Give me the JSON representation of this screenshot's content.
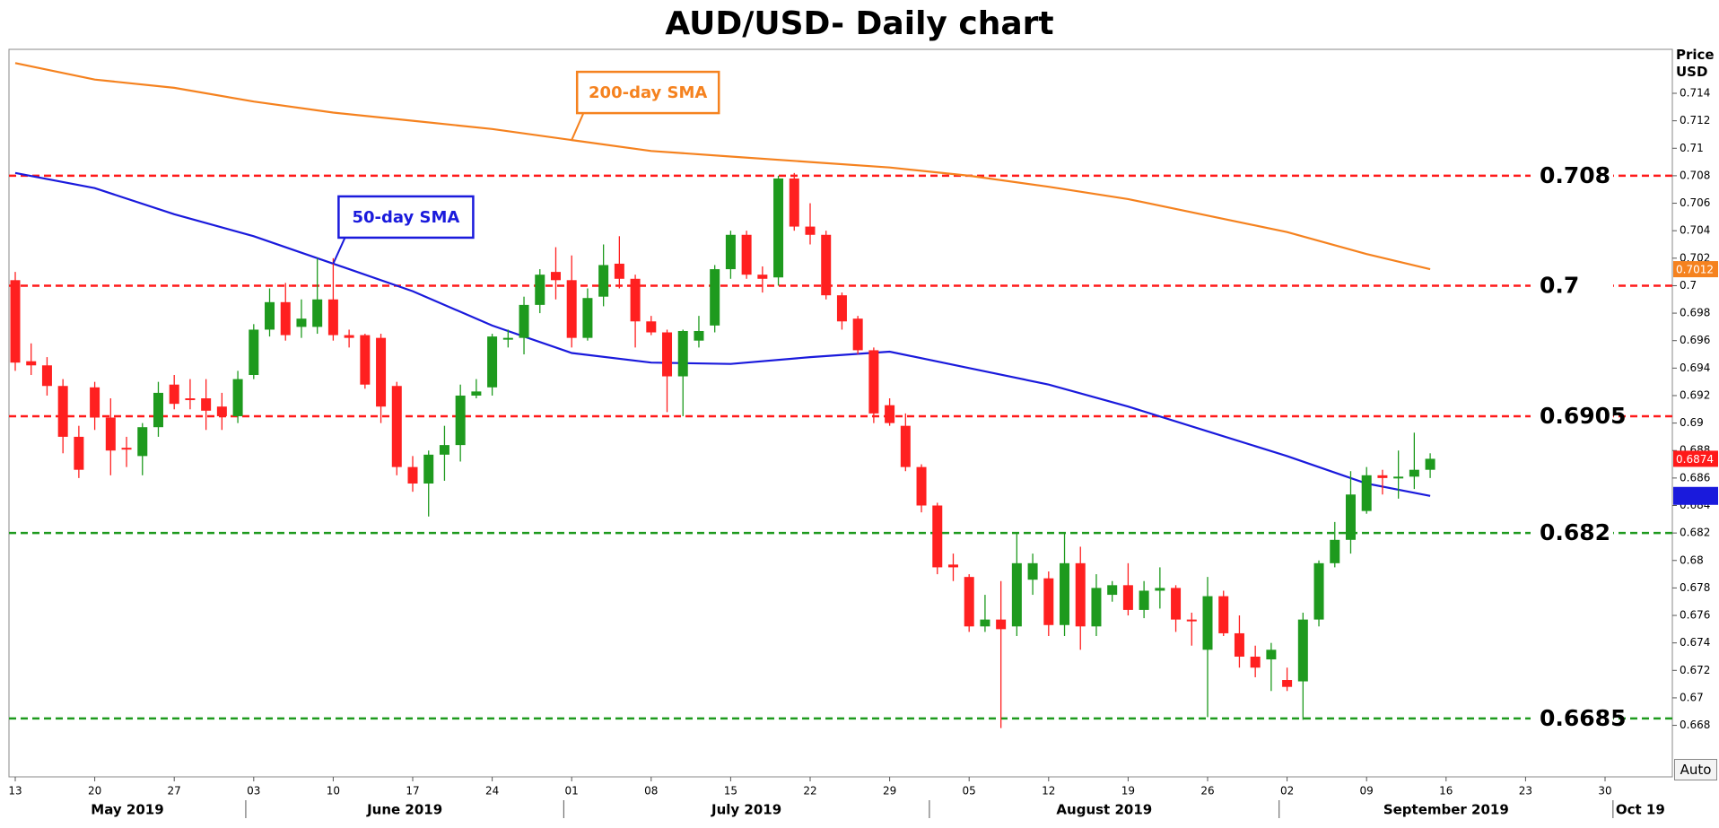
{
  "chart_data": {
    "type": "candlestick",
    "title": "AUD/USD- Daily chart",
    "ylabel": "Price USD",
    "auto_button": "Auto",
    "ylim": [
      0.66425,
      0.7172
    ],
    "yticks": [
      0.668,
      0.67,
      0.672,
      0.674,
      0.676,
      0.678,
      0.68,
      0.682,
      0.684,
      0.686,
      0.688,
      0.69,
      0.692,
      0.694,
      0.696,
      0.698,
      0.7,
      0.702,
      0.704,
      0.706,
      0.708,
      0.71,
      0.712,
      0.714
    ],
    "xticks": [
      {
        "value": "2019-05-13",
        "label": "13"
      },
      {
        "value": "2019-05-20",
        "label": "20"
      },
      {
        "value": "2019-05-27",
        "label": "27"
      },
      {
        "value": "2019-06-03",
        "label": "03"
      },
      {
        "value": "2019-06-10",
        "label": "10"
      },
      {
        "value": "2019-06-17",
        "label": "17"
      },
      {
        "value": "2019-06-24",
        "label": "24"
      },
      {
        "value": "2019-07-01",
        "label": "01"
      },
      {
        "value": "2019-07-08",
        "label": "08"
      },
      {
        "value": "2019-07-15",
        "label": "15"
      },
      {
        "value": "2019-07-22",
        "label": "22"
      },
      {
        "value": "2019-07-29",
        "label": "29"
      },
      {
        "value": "2019-08-05",
        "label": "05"
      },
      {
        "value": "2019-08-12",
        "label": "12"
      },
      {
        "value": "2019-08-19",
        "label": "19"
      },
      {
        "value": "2019-08-26",
        "label": "26"
      },
      {
        "value": "2019-09-02",
        "label": "02"
      },
      {
        "value": "2019-09-09",
        "label": "09"
      },
      {
        "value": "2019-09-16",
        "label": "16"
      },
      {
        "value": "2019-09-23",
        "label": "23"
      },
      {
        "value": "2019-09-30",
        "label": "30"
      }
    ],
    "month_labels": [
      {
        "value": "2019-05-01",
        "label": "May 2019"
      },
      {
        "value": "2019-06-03",
        "label": "June 2019"
      },
      {
        "value": "2019-07-01",
        "label": "July 2019"
      },
      {
        "value": "2019-08-01",
        "label": "August 2019"
      },
      {
        "value": "2019-09-02",
        "label": "September 2019"
      },
      {
        "value": "2019-10-01",
        "label": "Oct 19"
      }
    ],
    "up_color": "#1e9a1e",
    "down_color": "#ff2020",
    "x": [
      "2019-05-13",
      "2019-05-14",
      "2019-05-15",
      "2019-05-16",
      "2019-05-17",
      "2019-05-20",
      "2019-05-21",
      "2019-05-22",
      "2019-05-23",
      "2019-05-24",
      "2019-05-27",
      "2019-05-28",
      "2019-05-29",
      "2019-05-30",
      "2019-05-31",
      "2019-06-03",
      "2019-06-04",
      "2019-06-05",
      "2019-06-06",
      "2019-06-07",
      "2019-06-10",
      "2019-06-11",
      "2019-06-12",
      "2019-06-13",
      "2019-06-14",
      "2019-06-17",
      "2019-06-18",
      "2019-06-19",
      "2019-06-20",
      "2019-06-21",
      "2019-06-24",
      "2019-06-25",
      "2019-06-26",
      "2019-06-27",
      "2019-06-28",
      "2019-07-01",
      "2019-07-02",
      "2019-07-03",
      "2019-07-04",
      "2019-07-05",
      "2019-07-08",
      "2019-07-09",
      "2019-07-10",
      "2019-07-11",
      "2019-07-12",
      "2019-07-15",
      "2019-07-16",
      "2019-07-17",
      "2019-07-18",
      "2019-07-19",
      "2019-07-22",
      "2019-07-23",
      "2019-07-24",
      "2019-07-25",
      "2019-07-26",
      "2019-07-29",
      "2019-07-30",
      "2019-07-31",
      "2019-08-01",
      "2019-08-02",
      "2019-08-05",
      "2019-08-06",
      "2019-08-07",
      "2019-08-08",
      "2019-08-09",
      "2019-08-12",
      "2019-08-13",
      "2019-08-14",
      "2019-08-15",
      "2019-08-16",
      "2019-08-19",
      "2019-08-20",
      "2019-08-21",
      "2019-08-22",
      "2019-08-23",
      "2019-08-26",
      "2019-08-27",
      "2019-08-28",
      "2019-08-29",
      "2019-08-30",
      "2019-09-02",
      "2019-09-03",
      "2019-09-04",
      "2019-09-05",
      "2019-09-06",
      "2019-09-09",
      "2019-09-10",
      "2019-09-11",
      "2019-09-12",
      "2019-09-13"
    ],
    "open": [
      0.7004,
      0.6945,
      0.6942,
      0.6927,
      0.689,
      0.6926,
      0.6904,
      0.6882,
      0.6876,
      0.6897,
      0.6928,
      0.6918,
      0.6918,
      0.6912,
      0.6905,
      0.6935,
      0.6968,
      0.6988,
      0.697,
      0.697,
      0.699,
      0.6964,
      0.6964,
      0.6962,
      0.6927,
      0.6868,
      0.6856,
      0.6877,
      0.6884,
      0.692,
      0.6926,
      0.6961,
      0.6962,
      0.6986,
      0.701,
      0.7004,
      0.6962,
      0.6992,
      0.7016,
      0.7005,
      0.6974,
      0.6966,
      0.6934,
      0.696,
      0.6971,
      0.7012,
      0.7037,
      0.7008,
      0.7006,
      0.7078,
      0.7043,
      0.7037,
      0.6993,
      0.6976,
      0.6953,
      0.6913,
      0.6898,
      0.6868,
      0.684,
      0.6797,
      0.6788,
      0.6752,
      0.6757,
      0.6752,
      0.6786,
      0.6787,
      0.6753,
      0.6798,
      0.6752,
      0.6775,
      0.6782,
      0.6764,
      0.6778,
      0.678,
      0.6757,
      0.6735,
      0.6774,
      0.6747,
      0.673,
      0.6728,
      0.6713,
      0.6712,
      0.6757,
      0.6798,
      0.6815,
      0.6836,
      0.6862,
      0.686,
      0.6861,
      0.6866
    ],
    "high": [
      0.701,
      0.6958,
      0.6948,
      0.6932,
      0.6898,
      0.693,
      0.6918,
      0.689,
      0.69,
      0.693,
      0.6935,
      0.6932,
      0.6932,
      0.6922,
      0.6938,
      0.6972,
      0.6998,
      0.7002,
      0.699,
      0.702,
      0.702,
      0.6968,
      0.6965,
      0.6965,
      0.693,
      0.6876,
      0.688,
      0.6898,
      0.6928,
      0.6932,
      0.6965,
      0.6968,
      0.6992,
      0.7012,
      0.7028,
      0.7022,
      0.6998,
      0.703,
      0.7036,
      0.7008,
      0.6978,
      0.6968,
      0.6968,
      0.6978,
      0.7015,
      0.704,
      0.704,
      0.7014,
      0.708,
      0.7082,
      0.706,
      0.704,
      0.6995,
      0.6978,
      0.6955,
      0.6918,
      0.6907,
      0.687,
      0.6842,
      0.6805,
      0.679,
      0.6775,
      0.6785,
      0.682,
      0.6805,
      0.6792,
      0.682,
      0.681,
      0.679,
      0.6785,
      0.6798,
      0.6785,
      0.6795,
      0.6782,
      0.6762,
      0.6788,
      0.6778,
      0.676,
      0.6738,
      0.674,
      0.6722,
      0.6762,
      0.68,
      0.6828,
      0.6865,
      0.6868,
      0.6866,
      0.688,
      0.6893,
      0.6878
    ],
    "low": [
      0.6938,
      0.6935,
      0.692,
      0.6878,
      0.686,
      0.6895,
      0.6862,
      0.6868,
      0.6862,
      0.689,
      0.691,
      0.691,
      0.6895,
      0.6895,
      0.69,
      0.6932,
      0.6963,
      0.696,
      0.6962,
      0.6965,
      0.696,
      0.6955,
      0.6925,
      0.69,
      0.6862,
      0.685,
      0.6832,
      0.6858,
      0.6872,
      0.6918,
      0.692,
      0.6955,
      0.695,
      0.698,
      0.699,
      0.6955,
      0.696,
      0.6985,
      0.6998,
      0.6955,
      0.6964,
      0.6908,
      0.6905,
      0.6955,
      0.6966,
      0.7005,
      0.7005,
      0.6995,
      0.7,
      0.704,
      0.703,
      0.699,
      0.6968,
      0.695,
      0.69,
      0.6898,
      0.6865,
      0.6835,
      0.679,
      0.6785,
      0.6748,
      0.6748,
      0.6678,
      0.6745,
      0.6775,
      0.6745,
      0.6745,
      0.6735,
      0.6745,
      0.677,
      0.676,
      0.6758,
      0.6765,
      0.6748,
      0.6738,
      0.6686,
      0.6745,
      0.6722,
      0.6715,
      0.6705,
      0.6705,
      0.6684,
      0.6752,
      0.6795,
      0.6805,
      0.6834,
      0.6848,
      0.6845,
      0.6852,
      0.686
    ],
    "close": [
      0.6944,
      0.6942,
      0.6927,
      0.689,
      0.6866,
      0.6904,
      0.688,
      0.6881,
      0.6897,
      0.6922,
      0.6914,
      0.6917,
      0.6909,
      0.6905,
      0.6932,
      0.6968,
      0.6988,
      0.6964,
      0.6976,
      0.699,
      0.6964,
      0.6962,
      0.6928,
      0.6912,
      0.6868,
      0.6856,
      0.6877,
      0.6884,
      0.692,
      0.6923,
      0.6963,
      0.6962,
      0.6986,
      0.7008,
      0.7004,
      0.6962,
      0.6991,
      0.7015,
      0.7005,
      0.6974,
      0.6966,
      0.6934,
      0.6967,
      0.6967,
      0.7012,
      0.7037,
      0.7008,
      0.7005,
      0.7078,
      0.7043,
      0.7037,
      0.6993,
      0.6974,
      0.6953,
      0.6907,
      0.69,
      0.6868,
      0.684,
      0.6795,
      0.6795,
      0.6752,
      0.6757,
      0.675,
      0.6798,
      0.6798,
      0.6753,
      0.6798,
      0.6752,
      0.678,
      0.6782,
      0.6764,
      0.6778,
      0.678,
      0.6757,
      0.6756,
      0.6774,
      0.6747,
      0.673,
      0.6722,
      0.6735,
      0.6708,
      0.6757,
      0.6798,
      0.6815,
      0.6848,
      0.6862,
      0.686,
      0.6861,
      0.6866,
      0.6874
    ],
    "series": [
      {
        "name": "200-day SMA",
        "color": "#f5821f",
        "x": [
          "2019-05-13",
          "2019-05-20",
          "2019-05-27",
          "2019-06-03",
          "2019-06-10",
          "2019-06-17",
          "2019-06-24",
          "2019-07-01",
          "2019-07-08",
          "2019-07-15",
          "2019-07-22",
          "2019-07-29",
          "2019-08-05",
          "2019-08-12",
          "2019-08-19",
          "2019-08-26",
          "2019-09-02",
          "2019-09-09",
          "2019-09-13"
        ],
        "values": [
          0.7162,
          0.715,
          0.7144,
          0.7134,
          0.7126,
          0.712,
          0.7114,
          0.7106,
          0.7098,
          0.7094,
          0.709,
          0.7086,
          0.708,
          0.7072,
          0.7063,
          0.7051,
          0.7039,
          0.7023,
          0.7012
        ]
      },
      {
        "name": "50-day SMA",
        "color": "#1a1adc",
        "x": [
          "2019-05-13",
          "2019-05-20",
          "2019-05-27",
          "2019-06-03",
          "2019-06-10",
          "2019-06-17",
          "2019-06-24",
          "2019-07-01",
          "2019-07-08",
          "2019-07-15",
          "2019-07-22",
          "2019-07-29",
          "2019-08-05",
          "2019-08-12",
          "2019-08-19",
          "2019-08-26",
          "2019-09-02",
          "2019-09-09",
          "2019-09-13"
        ],
        "values": [
          0.7082,
          0.7071,
          0.7052,
          0.7036,
          0.7016,
          0.6996,
          0.6971,
          0.6951,
          0.6944,
          0.6943,
          0.6948,
          0.6952,
          0.694,
          0.6928,
          0.6912,
          0.6894,
          0.6876,
          0.6856,
          0.6847
        ]
      }
    ],
    "levels": [
      {
        "value": 0.708,
        "color": "#ff1a1a"
      },
      {
        "value": 0.7,
        "color": "#ff1a1a"
      },
      {
        "value": 0.6905,
        "color": "#ff1a1a"
      },
      {
        "value": 0.682,
        "color": "#1e9a1e"
      },
      {
        "value": 0.6685,
        "color": "#1e9a1e"
      }
    ],
    "price_tags": [
      {
        "value": 0.7012,
        "color": "#f5821f"
      },
      {
        "value": 0.6874,
        "color": "#ff1a1a"
      }
    ]
  }
}
